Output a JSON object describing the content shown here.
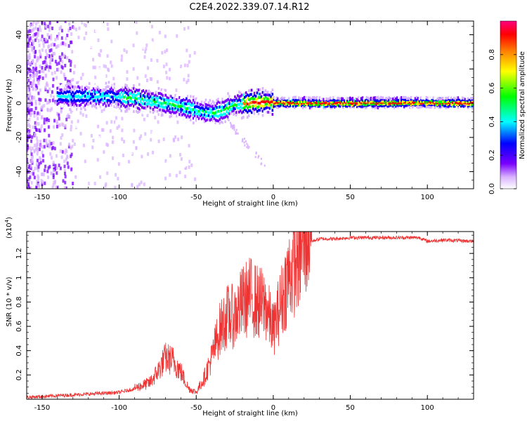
{
  "title": "C2E4.2022.339.07.14.R12",
  "chart_data": [
    {
      "type": "heatmap",
      "xlabel": "Height of straight line (km)",
      "ylabel": "Frequency (Hz)",
      "xlim": [
        -160,
        130
      ],
      "ylim": [
        -50,
        48
      ],
      "x_ticks": [
        -150,
        -100,
        -50,
        0,
        50,
        100
      ],
      "y_ticks": [
        -40,
        -20,
        0,
        20,
        40
      ],
      "colorbar": {
        "label": "Normalized spectral amplitude",
        "range": [
          0,
          1
        ],
        "ticks": [
          0.0,
          0.2,
          0.4,
          0.6,
          0.8
        ],
        "colors": [
          "#ffffff",
          "#d9b3ff",
          "#7a00ff",
          "#0000ff",
          "#00ffff",
          "#00ff00",
          "#ffff00",
          "#ff8000",
          "#ff0000",
          "#ff007f"
        ]
      },
      "ridge": {
        "x": [
          -130,
          -110,
          -90,
          -70,
          -55,
          -40,
          -32,
          -25,
          -15,
          -5,
          0,
          20,
          60,
          95,
          130
        ],
        "y": [
          4,
          4,
          3,
          0,
          -3,
          -6,
          -4,
          -1,
          0,
          1,
          0.5,
          0.3,
          0.3,
          0.5,
          0.3
        ]
      }
    },
    {
      "type": "line",
      "xlabel": "Height of straight line (km)",
      "ylabel": "SNR (10 * v/v)",
      "y_multiplier": "(x10",
      "y_multiplier_exp": "4",
      "y_multiplier_close": ")",
      "xlim": [
        -160,
        130
      ],
      "ylim": [
        0,
        1.38
      ],
      "x_ticks": [
        -150,
        -100,
        -50,
        0,
        50,
        100
      ],
      "y_ticks": [
        0.2,
        0.4,
        0.6,
        0.8,
        1.0,
        1.2
      ],
      "color": "#ee3333",
      "envelope": {
        "x": [
          -160,
          -130,
          -100,
          -90,
          -80,
          -75,
          -70,
          -65,
          -60,
          -55,
          -50,
          -45,
          -40,
          -35,
          -30,
          -25,
          -20,
          -15,
          -10,
          -5,
          0,
          5,
          10,
          15,
          20,
          25,
          30,
          35,
          40,
          50,
          60,
          80,
          95,
          100,
          110,
          130
        ],
        "y": [
          0.01,
          0.03,
          0.05,
          0.08,
          0.12,
          0.2,
          0.3,
          0.28,
          0.2,
          0.08,
          0.05,
          0.15,
          0.3,
          0.5,
          0.6,
          0.6,
          0.7,
          0.75,
          0.7,
          0.68,
          0.5,
          0.7,
          0.9,
          1.0,
          1.15,
          1.3,
          1.32,
          1.32,
          1.32,
          1.33,
          1.33,
          1.33,
          1.33,
          1.3,
          1.31,
          1.3
        ]
      }
    }
  ]
}
